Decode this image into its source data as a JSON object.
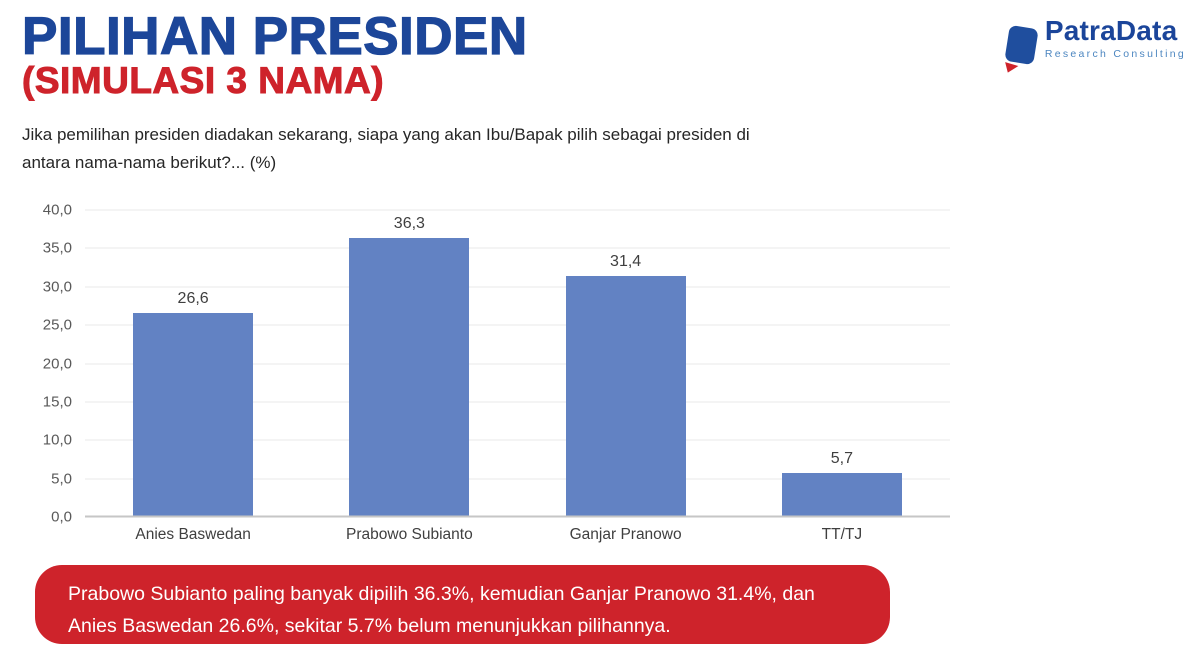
{
  "header": {
    "title": "PILIHAN PRESIDEN",
    "subtitle": "(SIMULASI 3 NAMA)",
    "question": "Jika pemilihan presiden diadakan sekarang, siapa yang akan Ibu/Bapak pilih sebagai presiden di antara nama-nama berikut?... (%)"
  },
  "logo": {
    "name": "PatraData",
    "tagline": "Research Consulting"
  },
  "chart_data": {
    "type": "bar",
    "categories": [
      "Anies Baswedan",
      "Prabowo Subianto",
      "Ganjar Pranowo",
      "TT/TJ"
    ],
    "values": [
      26.6,
      36.3,
      31.4,
      5.7
    ],
    "value_labels": [
      "26,6",
      "36,3",
      "31,4",
      "5,7"
    ],
    "title": "",
    "xlabel": "",
    "ylabel": "",
    "ylim": [
      0,
      40
    ],
    "ytick_step": 5,
    "ytick_labels": [
      "0,0",
      "5,0",
      "10,0",
      "15,0",
      "20,0",
      "25,0",
      "30,0",
      "35,0",
      "40,0"
    ],
    "grid": true,
    "legend": false,
    "bar_color": "#6282C3"
  },
  "summary": {
    "line1": "Prabowo Subianto paling banyak dipilih 36.3%, kemudian Ganjar Pranowo 31.4%, dan",
    "line2": "Anies Baswedan 26.6%, sekitar 5.7% belum menunjukkan pilihannya.",
    "background": "#CE232B"
  },
  "colors": {
    "title_blue": "#1C4699",
    "accent_red": "#CE232B",
    "bar_blue": "#6282C3",
    "axis_text": "#595959",
    "gridline": "#E8E8E8",
    "baseline": "#C6C6C6"
  }
}
